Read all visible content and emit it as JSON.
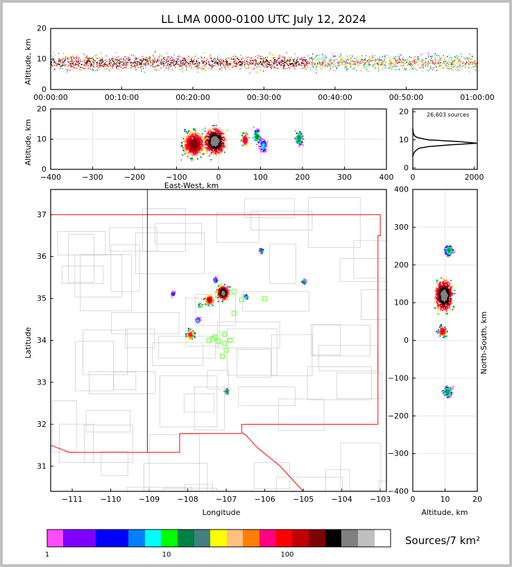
{
  "title": "LL LMA 0000-0100 UTC July 12, 2024",
  "colors": {
    "state_border": "#ff0000",
    "county_border": "#c8c8c8",
    "station_marker": "#66ff33"
  },
  "chart_data": [
    {
      "type": "heatmap",
      "panel": "altitude-time",
      "ylabel": "Altitude, km",
      "ylim": [
        0,
        20
      ],
      "yticks": [
        "0",
        "10",
        "20"
      ],
      "xticks": [
        "00:00:00",
        "00:10:00",
        "00:20:00",
        "00:30:00",
        "00:40:00",
        "00:50:00",
        "01:00:00"
      ],
      "xlim_minutes": [
        0,
        60
      ],
      "typical_altitude_km": [
        6,
        12
      ]
    },
    {
      "type": "heatmap",
      "panel": "altitude-eastwest",
      "xlabel": "East-West, km",
      "ylabel": "Altitude, km",
      "xlim": [
        -400,
        400
      ],
      "ylim": [
        0,
        20
      ],
      "xticks": [
        "-400",
        "-300",
        "-200",
        "-100",
        "0",
        "100",
        "200",
        "300",
        "400"
      ],
      "yticks": [
        "0",
        "10",
        "20"
      ],
      "clusters": [
        {
          "x": -60,
          "z": 8.5,
          "density": 150
        },
        {
          "x": -10,
          "z": 9.5,
          "density": 300
        },
        {
          "x": 62,
          "z": 10,
          "density": 80
        },
        {
          "x": 90,
          "z": 11,
          "density": 10
        },
        {
          "x": 105,
          "z": 8,
          "density": 5
        },
        {
          "x": 190,
          "z": 10.5,
          "density": 12
        }
      ]
    },
    {
      "type": "line",
      "panel": "altitude-histogram",
      "annotation": "26,603 sources",
      "xlim": [
        0,
        2100
      ],
      "ylim": [
        0,
        20
      ],
      "xticks": [
        "0",
        "2000"
      ],
      "yticks": [
        "0",
        "10",
        "20"
      ],
      "x": [
        0,
        20,
        80,
        200,
        500,
        1200,
        2080,
        1500,
        500,
        150,
        50,
        15,
        0
      ],
      "y": [
        4,
        5,
        6,
        7,
        7.6,
        8.2,
        8.8,
        9.4,
        10,
        10.8,
        11.5,
        12.5,
        14
      ]
    },
    {
      "type": "heatmap",
      "panel": "plan-view",
      "xlabel": "Longitude",
      "ylabel": "Latitude",
      "xlim": [
        -111.56,
        -102.84
      ],
      "ylim": [
        30.4,
        37.6
      ],
      "xticks": [
        "-111",
        "-110",
        "-109",
        "-108",
        "-107",
        "-106",
        "-105",
        "-104",
        "-103"
      ],
      "yticks": [
        "31",
        "32",
        "33",
        "34",
        "35",
        "36",
        "37"
      ],
      "clusters": [
        {
          "lon": -107.1,
          "lat": 35.15,
          "density": 300
        },
        {
          "lon": -107.45,
          "lat": 34.98,
          "density": 100
        },
        {
          "lon": -107.7,
          "lat": 34.85,
          "density": 20
        },
        {
          "lon": -107.95,
          "lat": 34.15,
          "density": 60
        },
        {
          "lon": -107.0,
          "lat": 32.8,
          "density": 15
        },
        {
          "lon": -106.1,
          "lat": 36.15,
          "density": 10
        },
        {
          "lon": -105.0,
          "lat": 35.42,
          "density": 10
        },
        {
          "lon": -106.5,
          "lat": 35.05,
          "density": 8
        },
        {
          "lon": -107.75,
          "lat": 34.5,
          "density": 6
        },
        {
          "lon": -108.4,
          "lat": 35.13,
          "density": 4
        },
        {
          "lon": -107.3,
          "lat": 35.45,
          "density": 5
        }
      ],
      "stations": [
        [
          -106.8,
          35.17
        ],
        [
          -106.6,
          34.97
        ],
        [
          -106.0,
          34.99
        ],
        [
          -106.8,
          34.65
        ],
        [
          -107.3,
          34.08
        ],
        [
          -107.05,
          34.15
        ],
        [
          -107.2,
          33.98
        ],
        [
          -107.05,
          33.93
        ],
        [
          -107.45,
          34.0
        ],
        [
          -106.9,
          34.0
        ],
        [
          -107.0,
          33.77
        ],
        [
          -107.1,
          33.62
        ],
        [
          -107.35,
          34.03
        ]
      ]
    },
    {
      "type": "heatmap",
      "panel": "altitude-northsouth",
      "xlabel": "Altitude, km",
      "ylabel": "North-South, km",
      "xlim": [
        0,
        20
      ],
      "ylim": [
        -400,
        400
      ],
      "xticks": [
        "0",
        "10",
        "20"
      ],
      "yticks": [
        "-400",
        "-300",
        "-200",
        "-100",
        "0",
        "100",
        "200",
        "300",
        "400"
      ],
      "clusters": [
        {
          "y": 120,
          "z": 9.5,
          "density": 300
        },
        {
          "y": 25,
          "z": 9,
          "density": 80
        },
        {
          "y": 240,
          "z": 11,
          "density": 10
        },
        {
          "y": -135,
          "z": 10.5,
          "density": 15
        }
      ]
    }
  ],
  "colorbar": {
    "label": "Sources/7 km²",
    "ticks": [
      "1",
      "10",
      "100"
    ],
    "colors": [
      "#ff4dff",
      "#8000ff",
      "#0000ff",
      "#0080ff",
      "#00ffff",
      "#00ff00",
      "#008040",
      "#408080",
      "#ffff00",
      "#ffc080",
      "#ff8000",
      "#ff0080",
      "#ff0000",
      "#c00000",
      "#800000",
      "#000000",
      "#808080",
      "#c0c0c0",
      "#ffffff"
    ]
  }
}
